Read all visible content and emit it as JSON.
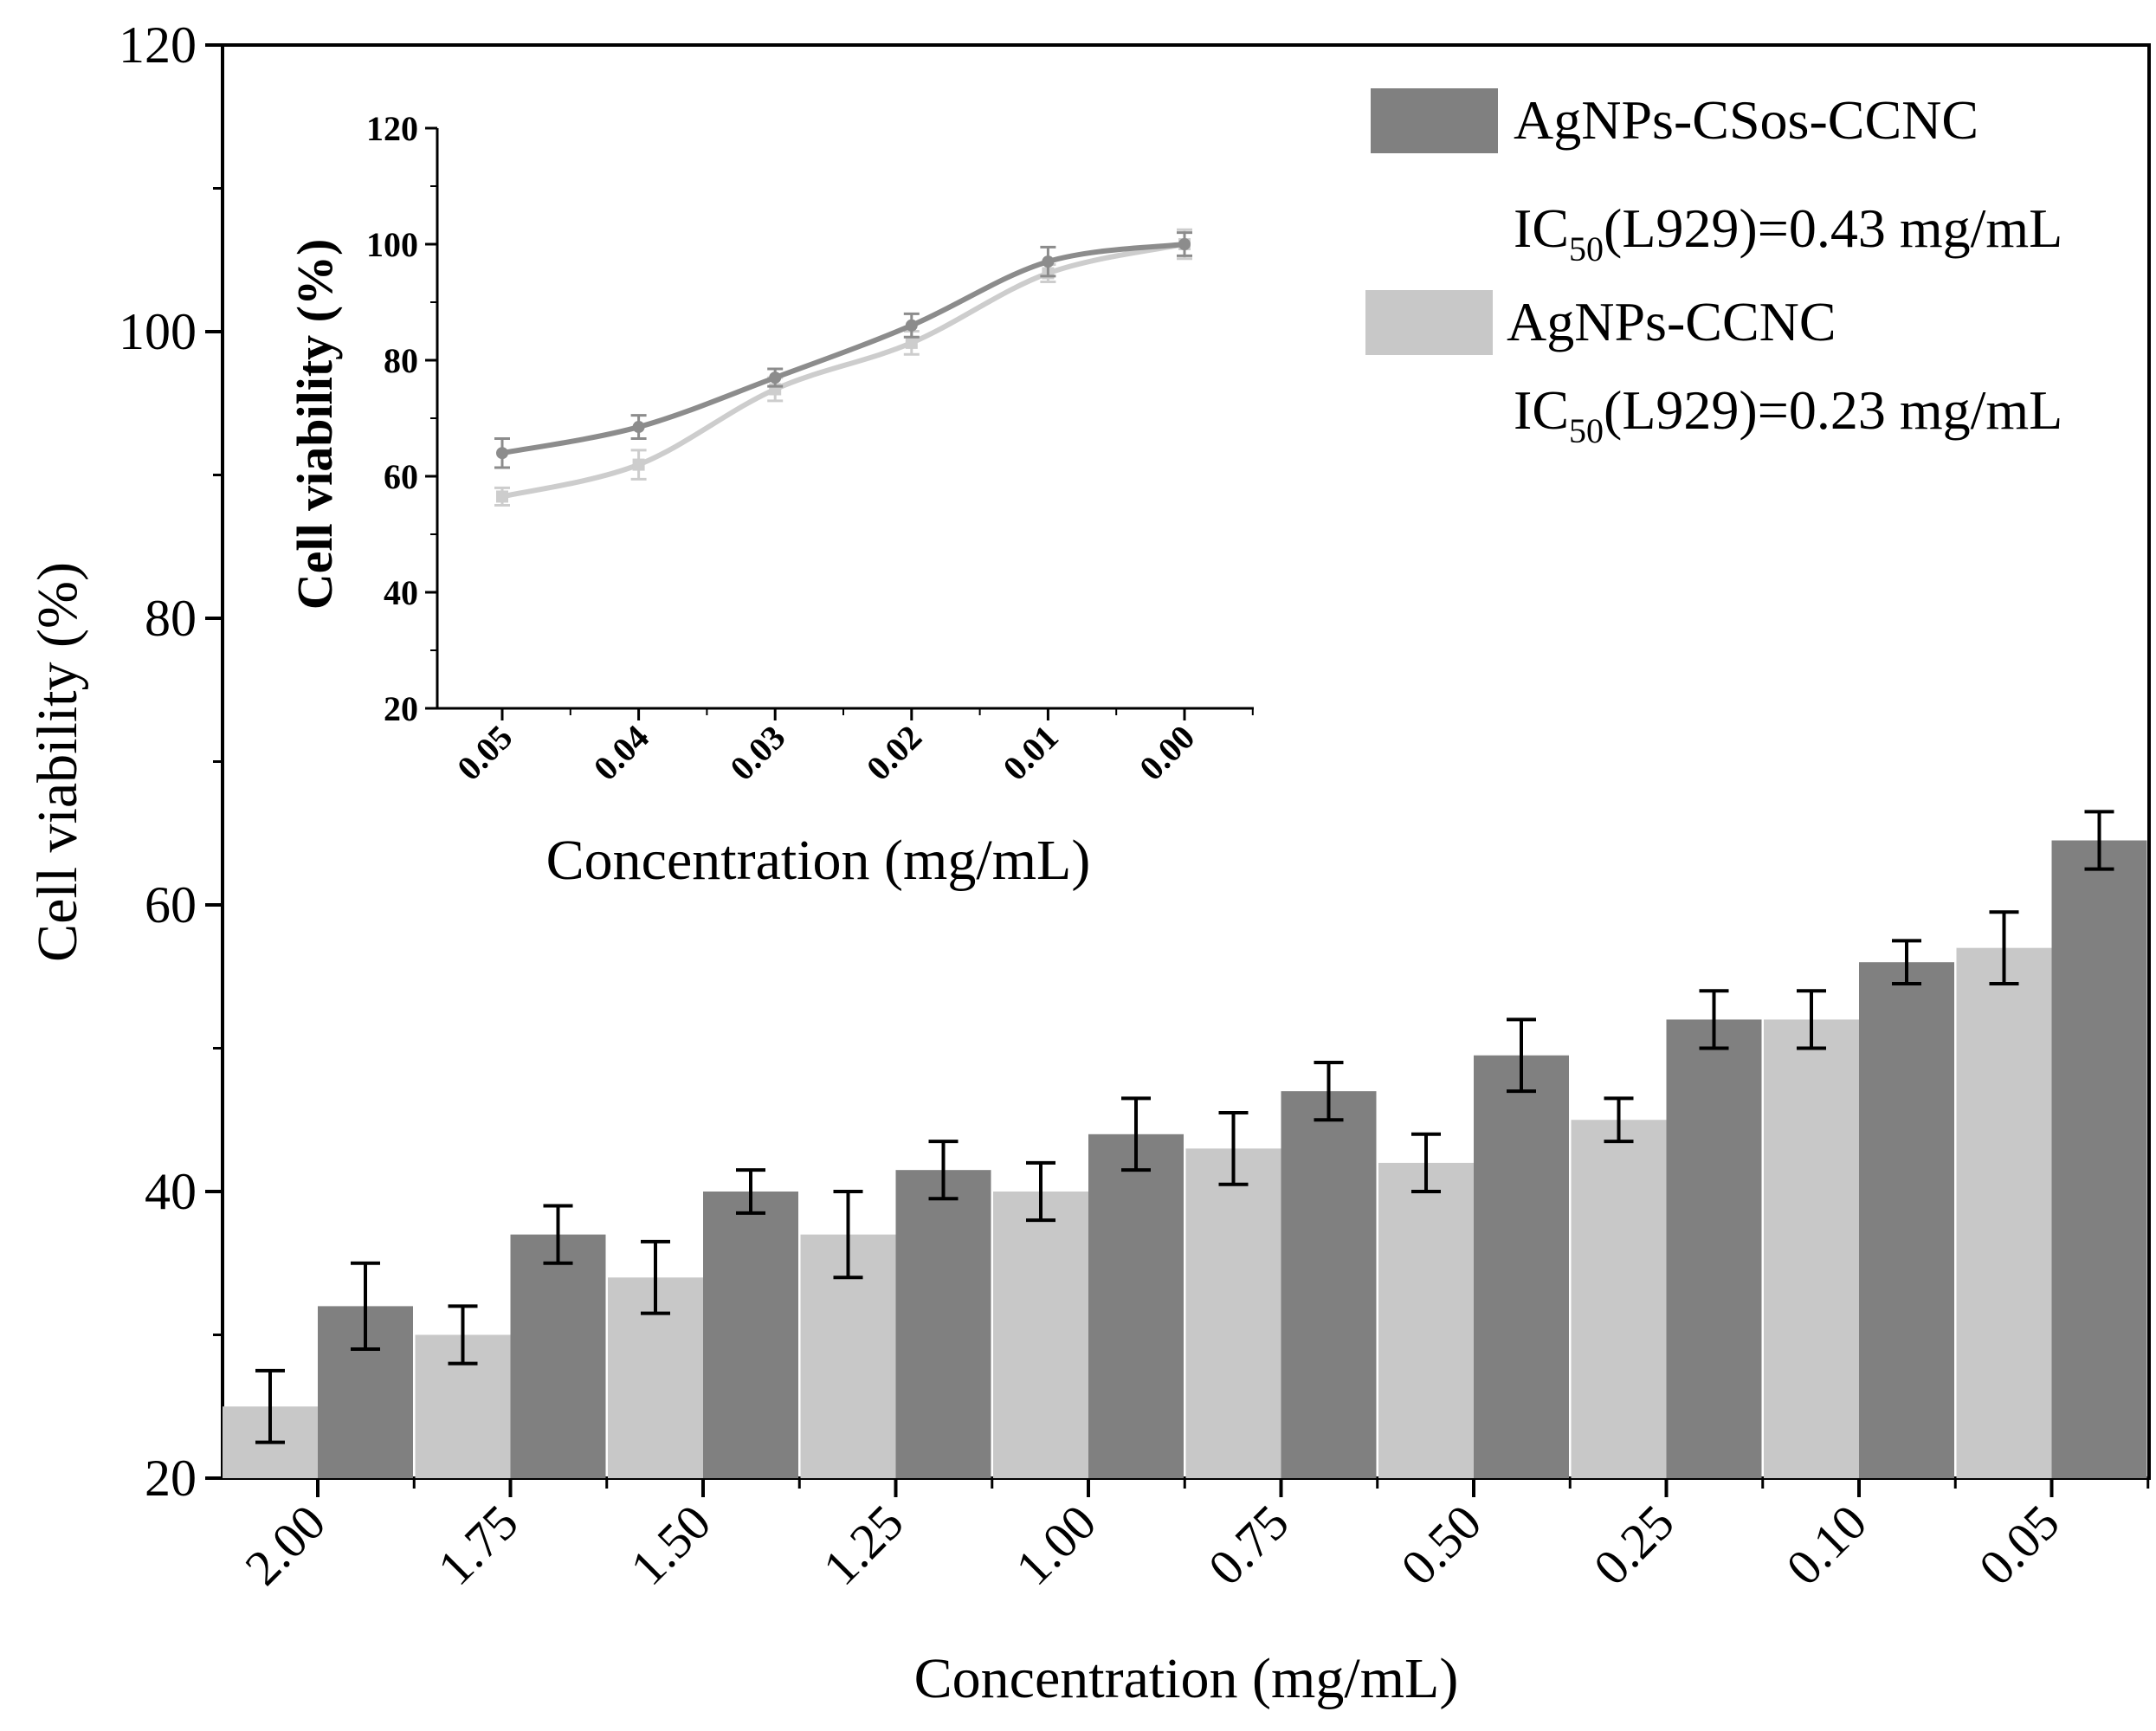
{
  "colors": {
    "dark_bar": "#808080",
    "light_bar": "#c8c8c8",
    "dark_line": "#8c8c8c",
    "light_line": "#cdcdcd",
    "axis": "#000000"
  },
  "chart_data": [
    {
      "type": "bar",
      "xlabel": "Concentration (mg/mL)",
      "ylabel": "Cell viability (%)",
      "ylim": [
        20,
        120
      ],
      "yticks": [
        "20",
        "40",
        "60",
        "80",
        "100",
        "120"
      ],
      "categories": [
        "2.00",
        "1.75",
        "1.50",
        "1.25",
        "1.00",
        "0.75",
        "0.50",
        "0.25",
        "0.10",
        "0.05"
      ],
      "series": [
        {
          "name": "AgNPs-CCNC",
          "values": [
            25,
            30,
            34,
            37,
            40,
            43,
            42,
            45,
            52,
            57
          ],
          "errors": [
            2.5,
            2,
            2.5,
            3,
            2,
            2.5,
            2,
            1.5,
            2,
            2.5
          ]
        },
        {
          "name": "AgNPs-CSos-CCNC",
          "values": [
            32,
            37,
            40,
            41.5,
            44,
            47,
            49.5,
            52,
            56,
            64.5
          ],
          "errors": [
            3,
            2,
            1.5,
            2,
            2.5,
            2,
            2.5,
            2,
            1.5,
            2
          ]
        }
      ],
      "legend": {
        "position": "top-right",
        "entries": [
          {
            "name": "AgNPs-CSos-CCNC",
            "ic50_prefix": "IC",
            "ic50_sub": "50",
            "ic50_rest": "(L929)=0.43 mg/mL"
          },
          {
            "name": "AgNPs-CCNC",
            "ic50_prefix": "IC",
            "ic50_sub": "50",
            "ic50_rest": "(L929)=0.23 mg/mL"
          }
        ]
      }
    },
    {
      "type": "line",
      "inset": true,
      "xlabel": "Concentration (mg/mL)",
      "ylabel": "Cell viability (%)",
      "ylim": [
        20,
        120
      ],
      "yticks": [
        "20",
        "40",
        "60",
        "80",
        "100",
        "120"
      ],
      "categories": [
        "0.05",
        "0.04",
        "0.03",
        "0.02",
        "0.01",
        "0.00"
      ],
      "series": [
        {
          "name": "AgNPs-CSos-CCNC",
          "values": [
            64,
            68.5,
            77,
            86,
            97,
            100
          ],
          "errors": [
            2.5,
            2,
            1.5,
            2,
            2.5,
            2
          ]
        },
        {
          "name": "AgNPs-CCNC",
          "values": [
            56.5,
            62,
            75,
            83,
            95,
            100
          ],
          "errors": [
            1.5,
            2.5,
            2,
            2,
            1.5,
            2.5
          ]
        }
      ]
    }
  ]
}
